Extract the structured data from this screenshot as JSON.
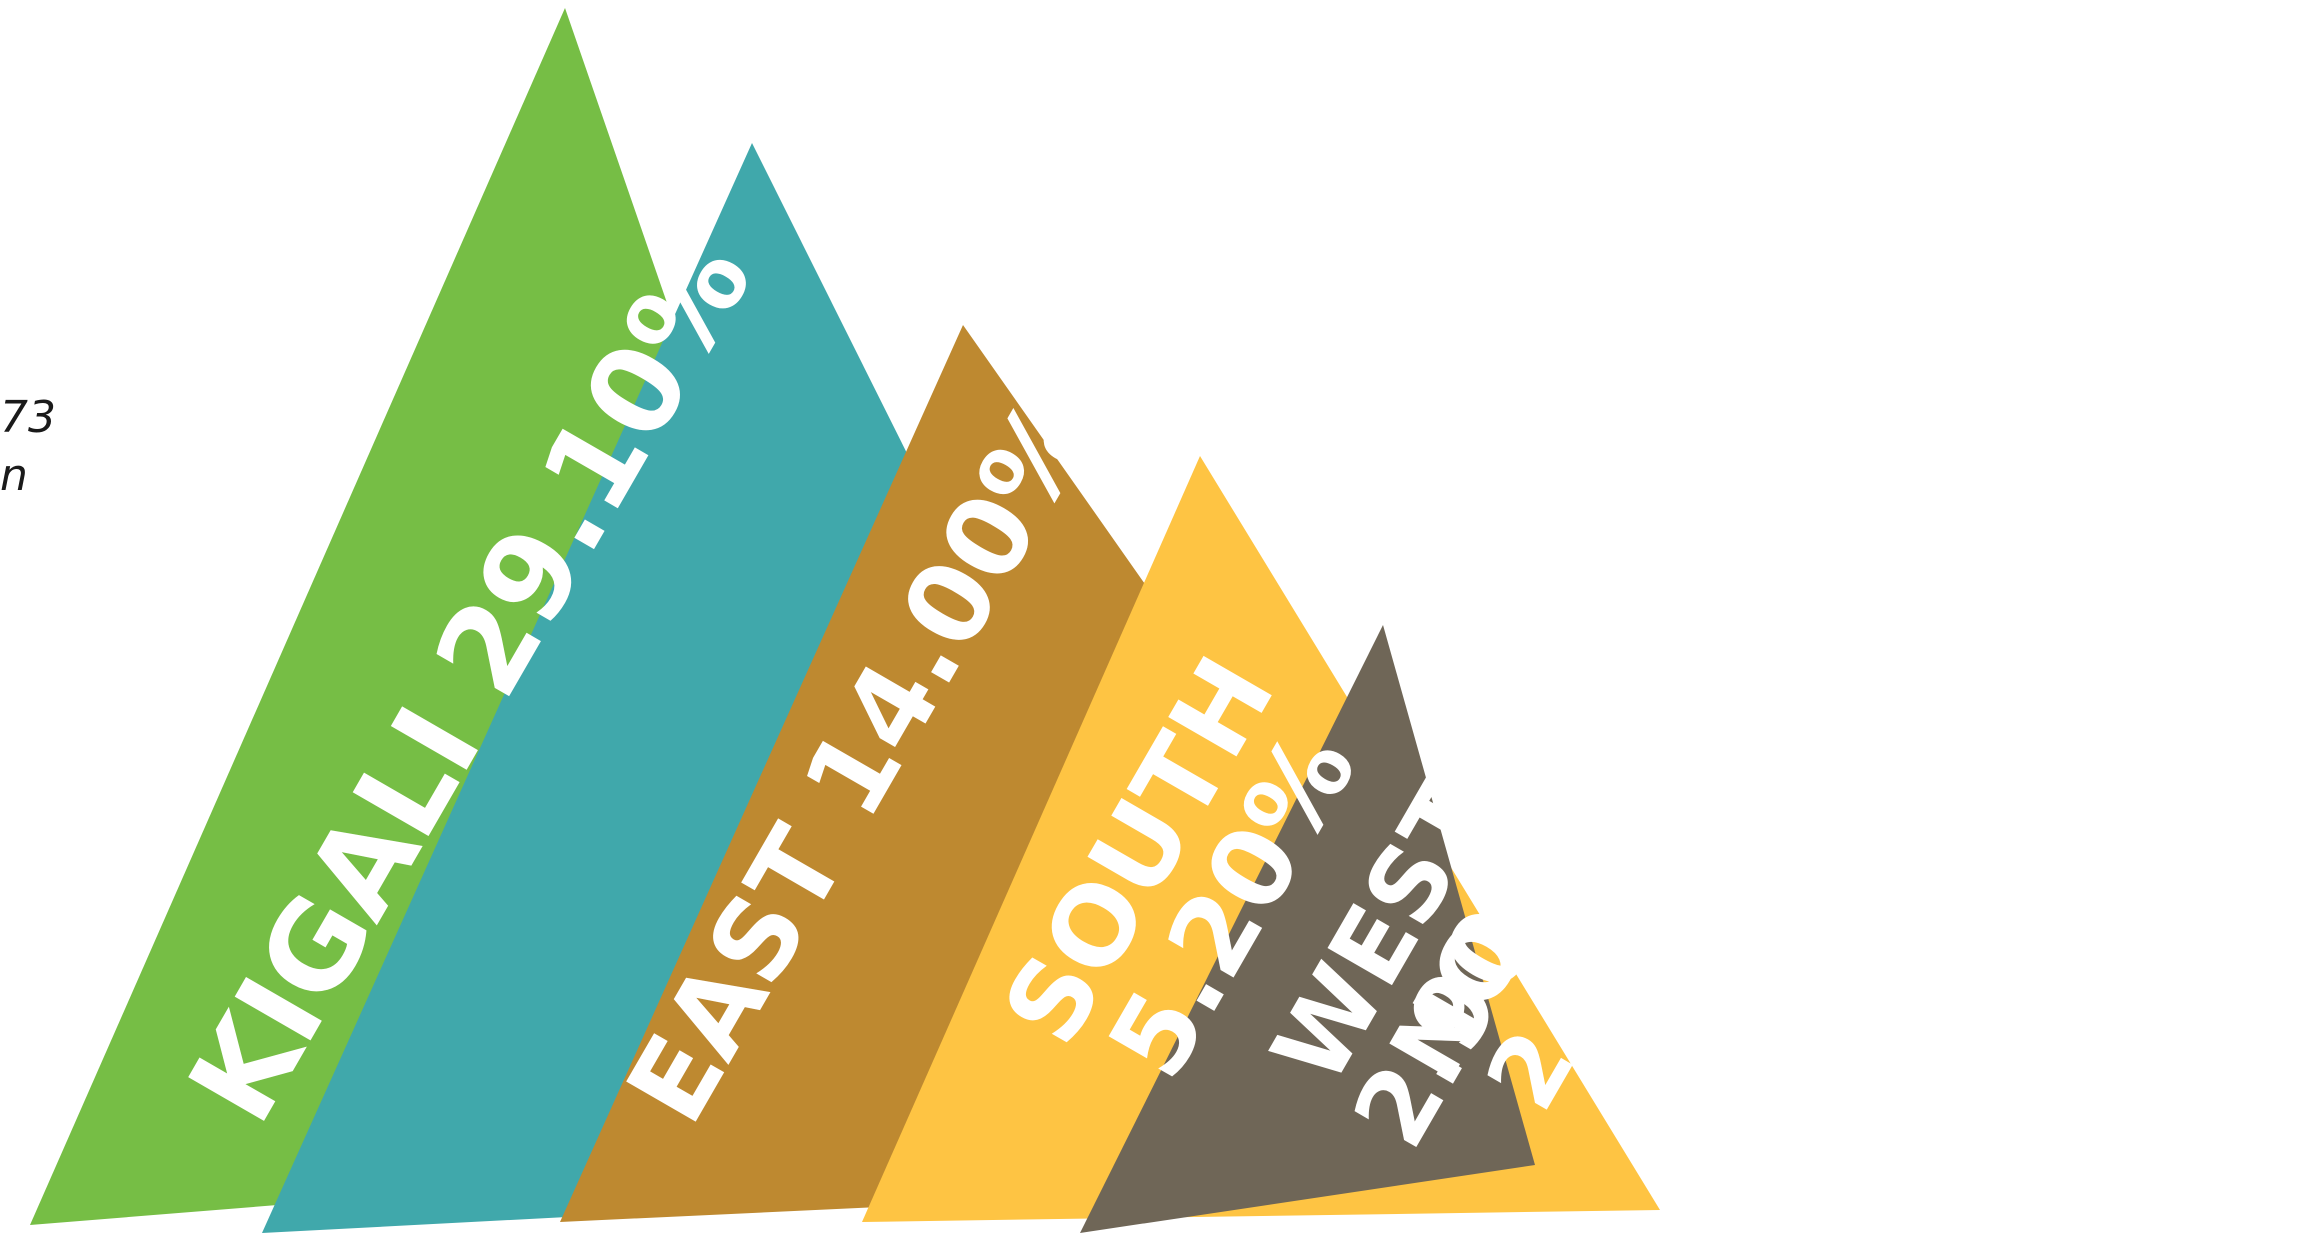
{
  "side_text": {
    "line1": "73",
    "line2": "n"
  },
  "chart_data": {
    "type": "bar",
    "title": "",
    "xlabel": "",
    "ylabel": "",
    "categories": [
      "KIGALI",
      "EAST",
      "SOUTH",
      "WEST",
      "NORTH"
    ],
    "values": [
      29.1,
      14.0,
      5.2,
      2.9,
      2.4
    ],
    "value_labels": [
      "29.10%",
      "14.00%",
      "5.20%",
      "2.90%",
      "2.40%"
    ],
    "bar_labels": [
      "KIGALI 29.10%",
      "EAST 14.00%",
      "SOUTH 5.20%",
      "WEST 2.90%",
      "NORTH 2.40%"
    ],
    "colors": [
      "#76BE45",
      "#40A8AB",
      "#BE8930",
      "#FEC443",
      "#6F6657"
    ],
    "grid": false,
    "legend": "none"
  }
}
